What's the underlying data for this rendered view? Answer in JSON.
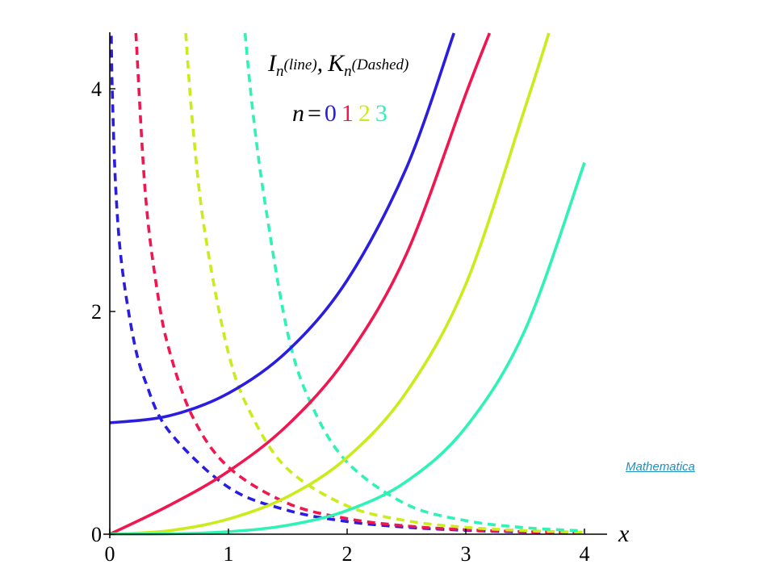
{
  "chart_data": {
    "type": "line",
    "title": "",
    "legend": {
      "line1": {
        "I": "I",
        "I_sub": "n",
        "I_note": "(line)",
        "sep": ",",
        "K": "K",
        "K_sub": "n",
        "K_note": "(Dashed)"
      },
      "line2": {
        "n": "n",
        "eq": "=",
        "values": [
          "0",
          "1",
          "2",
          "3"
        ]
      }
    },
    "xlabel": "x",
    "ylabel": "",
    "xlim": [
      0,
      4.15
    ],
    "ylim": [
      0,
      4.5
    ],
    "x_ticks": [
      "0",
      "1",
      "2",
      "3",
      "4"
    ],
    "y_ticks": [
      "0",
      "2",
      "4"
    ],
    "series": [
      {
        "kind": "I",
        "order": 0,
        "style": "solid",
        "color": "#2a1de0",
        "x": [
          0,
          0.5,
          1,
          1.5,
          2,
          2.5,
          2.9
        ],
        "y": [
          1.0,
          1.063,
          1.266,
          1.647,
          2.28,
          3.29,
          4.5
        ]
      },
      {
        "kind": "I",
        "order": 1,
        "style": "solid",
        "color": "#f0164f",
        "x": [
          0,
          0.5,
          1,
          1.5,
          2,
          2.5,
          3,
          3.2
        ],
        "y": [
          0,
          0.258,
          0.565,
          0.982,
          1.591,
          2.517,
          3.953,
          4.5
        ]
      },
      {
        "kind": "I",
        "order": 2,
        "style": "solid",
        "color": "#c9ec1a",
        "x": [
          0,
          0.5,
          1,
          1.5,
          2,
          2.5,
          3,
          3.5,
          3.7
        ],
        "y": [
          0,
          0.0319,
          0.136,
          0.338,
          0.689,
          1.276,
          2.245,
          3.832,
          4.5
        ]
      },
      {
        "kind": "I",
        "order": 3,
        "style": "solid",
        "color": "#2ef2b6",
        "x": [
          0,
          0.5,
          1,
          1.5,
          2,
          2.5,
          3,
          3.5,
          4
        ],
        "y": [
          0,
          0.0026,
          0.0222,
          0.0807,
          0.213,
          0.474,
          0.96,
          1.836,
          3.337
        ]
      },
      {
        "kind": "K",
        "order": 0,
        "style": "dashed",
        "color": "#2a1de0",
        "x": [
          0.01,
          0.02,
          0.05,
          0.1,
          0.2,
          0.3,
          0.5,
          1,
          1.5,
          2,
          2.5,
          3,
          3.5,
          4
        ],
        "y": [
          4.721,
          4.028,
          3.114,
          2.427,
          1.753,
          1.372,
          0.924,
          0.421,
          0.214,
          0.114,
          0.0623,
          0.0347,
          0.0196,
          0.0112
        ]
      },
      {
        "kind": "K",
        "order": 1,
        "style": "dashed",
        "color": "#f0164f",
        "x": [
          0.22,
          0.3,
          0.4,
          0.5,
          0.7,
          1,
          1.5,
          2,
          2.5,
          3,
          3.5,
          4
        ],
        "y": [
          4.5,
          3.056,
          2.184,
          1.656,
          1.05,
          0.602,
          0.277,
          0.14,
          0.0739,
          0.0402,
          0.0222,
          0.0125
        ]
      },
      {
        "kind": "K",
        "order": 2,
        "style": "dashed",
        "color": "#c9ec1a",
        "x": [
          0.64,
          0.7,
          0.8,
          1,
          1.2,
          1.5,
          2,
          2.5,
          3,
          3.5,
          4
        ],
        "y": [
          4.5,
          3.662,
          2.72,
          1.625,
          1.059,
          0.584,
          0.254,
          0.121,
          0.0615,
          0.0322,
          0.0174
        ]
      },
      {
        "kind": "K",
        "order": 3,
        "style": "dashed",
        "color": "#2ef2b6",
        "x": [
          1.14,
          1.2,
          1.3,
          1.5,
          1.7,
          2,
          2.5,
          3,
          3.5,
          4
        ],
        "y": [
          4.5,
          3.848,
          3.03,
          1.802,
          1.162,
          0.647,
          0.268,
          0.122,
          0.0584,
          0.0296
        ]
      }
    ]
  },
  "source": {
    "label": "Mathematica"
  }
}
